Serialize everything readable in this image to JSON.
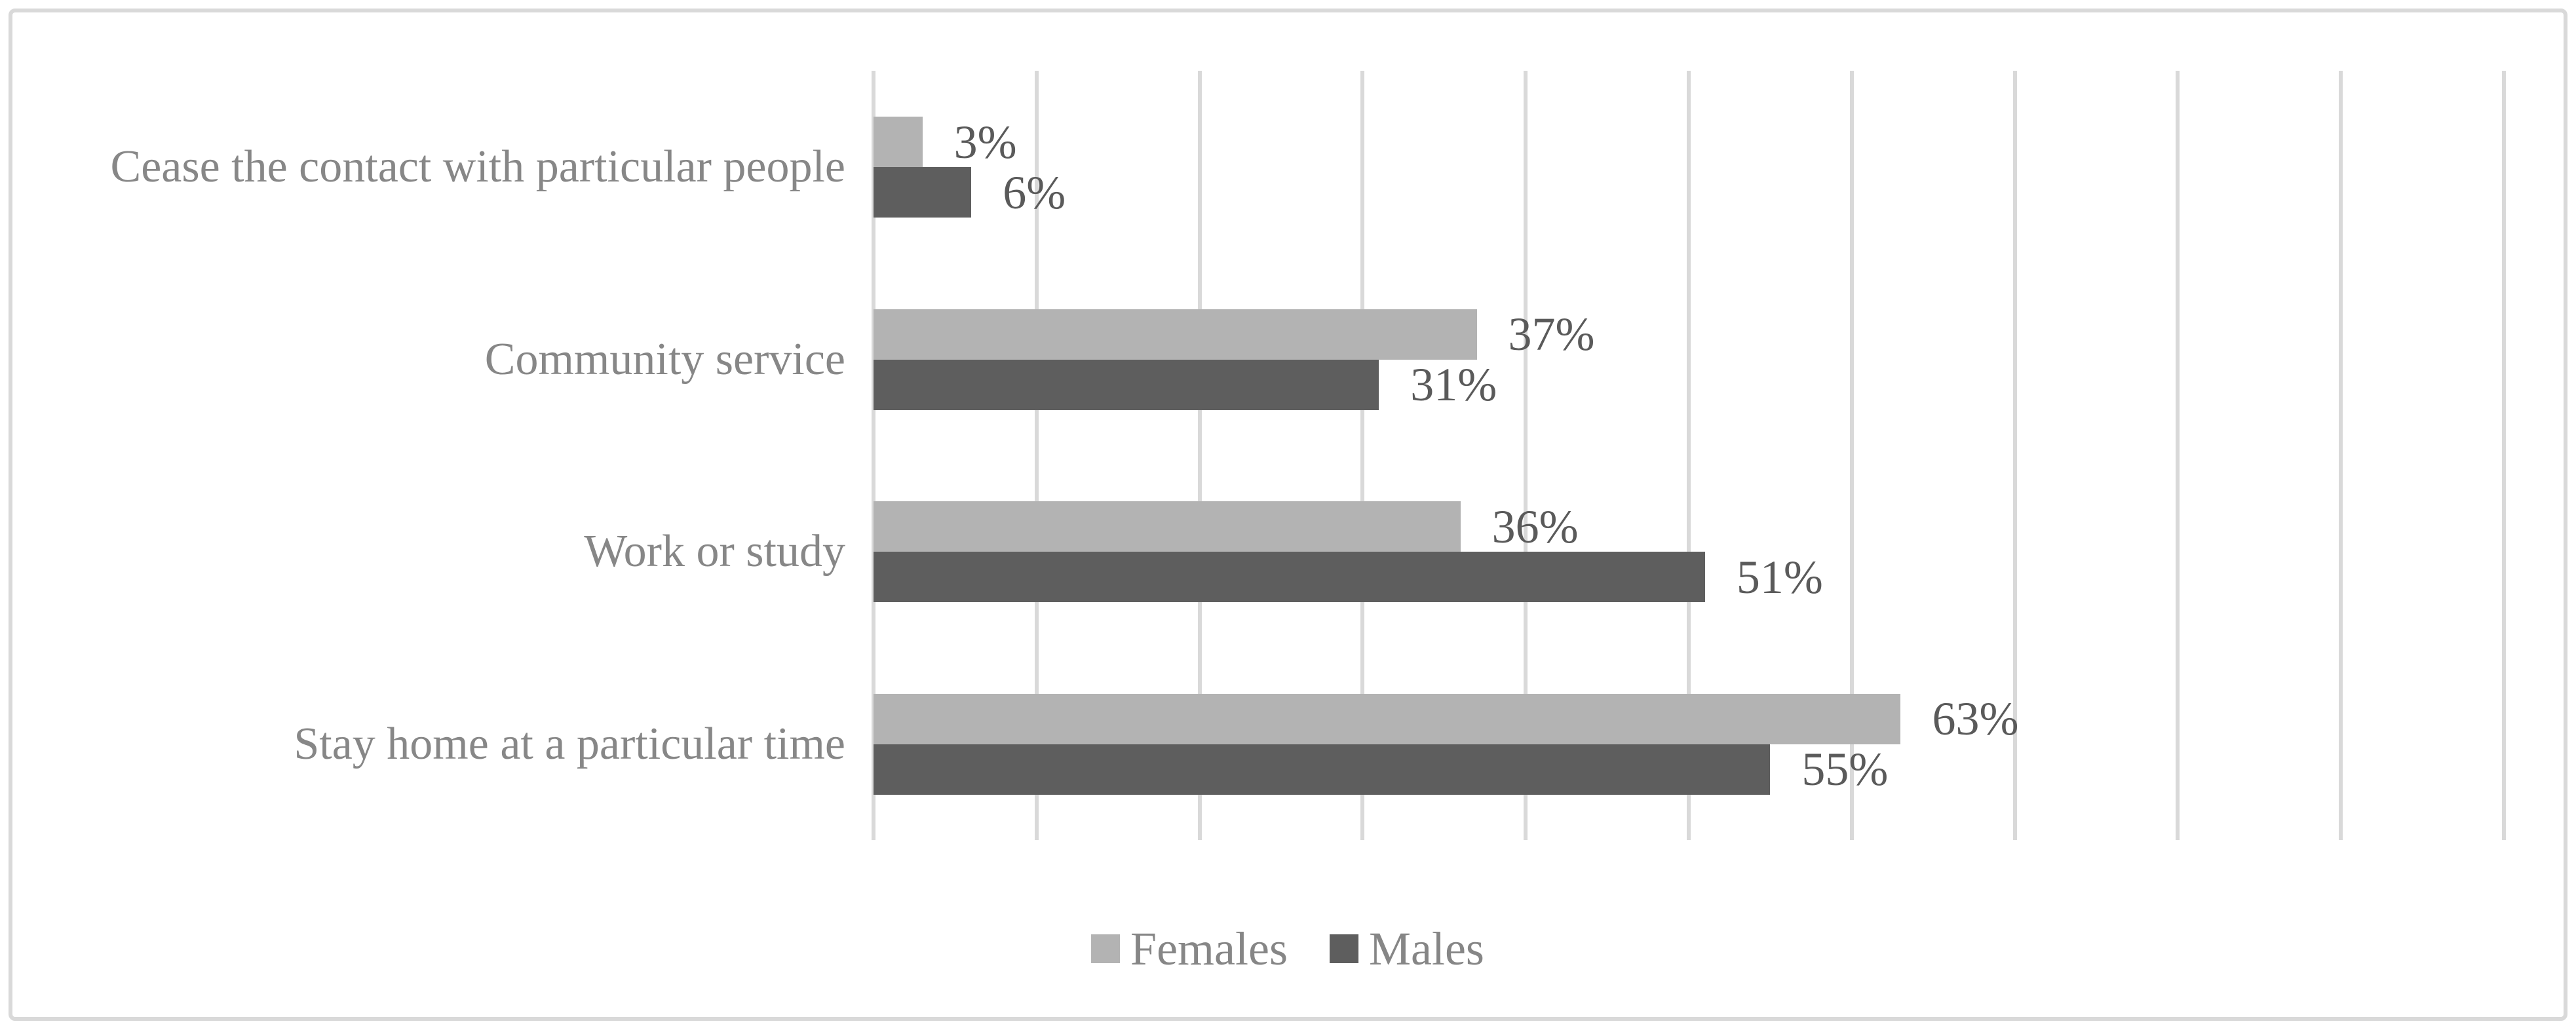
{
  "chart_data": {
    "type": "bar",
    "orientation": "horizontal",
    "title": "",
    "xlabel": "",
    "ylabel": "",
    "categories": [
      "Cease the contact with particular people",
      "Community service",
      "Work or study",
      "Stay home at a particular time"
    ],
    "series": [
      {
        "name": "Females",
        "color": "#b3b3b3",
        "values": [
          3,
          37,
          36,
          63
        ],
        "labels": [
          "3%",
          "37%",
          "36%",
          "63%"
        ]
      },
      {
        "name": "Males",
        "color": "#5e5e5e",
        "values": [
          6,
          31,
          51,
          55
        ],
        "labels": [
          "6%",
          "31%",
          "51%",
          "55%"
        ]
      }
    ],
    "xlim": [
      0,
      100
    ],
    "gridline_interval_pct": 10,
    "grid": true,
    "axis_tick_labels_visible": false,
    "legend_position": "bottom-center"
  },
  "style_colors": {
    "gridline": "#d9d9d9",
    "frame_border": "#d9d9d9",
    "category_label_text": "#878787",
    "value_label_text": "#5a5a5a",
    "legend_text": "#868686",
    "background": "#ffffff"
  }
}
